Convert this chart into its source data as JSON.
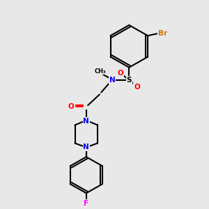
{
  "background_color": "#e8e8e8",
  "fig_size": [
    3.0,
    3.0
  ],
  "dpi": 100,
  "bond_color": "#000000",
  "bond_width": 1.5,
  "colors": {
    "Br": "#cc7700",
    "N": "#0000ff",
    "O": "#ff0000",
    "S": "#000000",
    "F": "#ff00ff",
    "C": "#000000"
  }
}
